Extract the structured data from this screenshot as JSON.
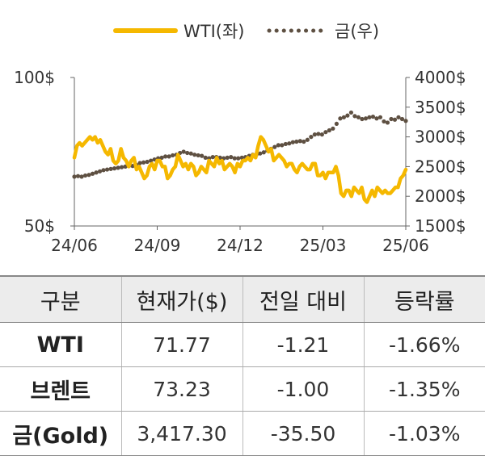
{
  "chart_data": {
    "type": "line",
    "legend": {
      "placement": "top-center"
    },
    "series": [
      {
        "name": "WTI(좌)",
        "axis": "left",
        "color": "#F5B800",
        "values": [
          73,
          77,
          78,
          77,
          78,
          79,
          80,
          79,
          80,
          78,
          79,
          77,
          75,
          74,
          76,
          72,
          71,
          72,
          76,
          73,
          72,
          70,
          72,
          73,
          69,
          70,
          68,
          66,
          67,
          70,
          71,
          69,
          72,
          72,
          70,
          70,
          66,
          67,
          69,
          70,
          74,
          72,
          70,
          71,
          69,
          71,
          70,
          67,
          68,
          70,
          69,
          68,
          72,
          71,
          70,
          73,
          71,
          72,
          69,
          70,
          71,
          70,
          68,
          71,
          70,
          72,
          72,
          73,
          72,
          74,
          73,
          77,
          80,
          79,
          77,
          75,
          76,
          72,
          73,
          74,
          73,
          72,
          70,
          71,
          71,
          69,
          68,
          70,
          71,
          70,
          69,
          69,
          71,
          71,
          67,
          67,
          68,
          66,
          68,
          68,
          68,
          70,
          67,
          61,
          60,
          62,
          62,
          60,
          63,
          62,
          61,
          63,
          59,
          58,
          60,
          62,
          60,
          63,
          62,
          61,
          62,
          61,
          61,
          62,
          63,
          63,
          66,
          67,
          69
        ]
      },
      {
        "name": "금(우)",
        "axis": "right",
        "color": "#5E5042",
        "values": [
          2330,
          2340,
          2330,
          2350,
          2360,
          2380,
          2400,
          2420,
          2440,
          2450,
          2460,
          2470,
          2480,
          2490,
          2500,
          2510,
          2510,
          2530,
          2560,
          2570,
          2580,
          2600,
          2620,
          2640,
          2650,
          2670,
          2670,
          2690,
          2700,
          2730,
          2750,
          2730,
          2720,
          2700,
          2690,
          2680,
          2650,
          2640,
          2660,
          2660,
          2650,
          2640,
          2650,
          2660,
          2640,
          2640,
          2650,
          2660,
          2680,
          2700,
          2700,
          2720,
          2740,
          2770,
          2800,
          2830,
          2860,
          2860,
          2880,
          2890,
          2910,
          2920,
          2930,
          2920,
          2950,
          3000,
          3040,
          3050,
          3040,
          3080,
          3110,
          3140,
          3220,
          3310,
          3330,
          3360,
          3410,
          3350,
          3330,
          3300,
          3310,
          3330,
          3340,
          3310,
          3330,
          3260,
          3240,
          3300,
          3290,
          3330,
          3300,
          3270
        ]
      }
    ],
    "x_ticks": [
      "24/06",
      "24/09",
      "24/12",
      "25/03",
      "25/06"
    ],
    "y_left": {
      "ticks": [
        "100$",
        "50$"
      ],
      "ylim": [
        50,
        100
      ]
    },
    "y_right": {
      "ticks": [
        "4000$",
        "3500$",
        "3000$",
        "2500$",
        "2000$",
        "1500$"
      ],
      "ylim": [
        1500,
        4000
      ]
    }
  },
  "table": {
    "headers": [
      "구분",
      "현재가($)",
      "전일 대비",
      "등락률"
    ],
    "rows": [
      [
        "WTI",
        "71.77",
        "-1.21",
        "-1.66%"
      ],
      [
        "브렌트",
        "73.23",
        "-1.00",
        "-1.35%"
      ],
      [
        "금(Gold)",
        "3,417.30",
        "-35.50",
        "-1.03%"
      ]
    ]
  }
}
